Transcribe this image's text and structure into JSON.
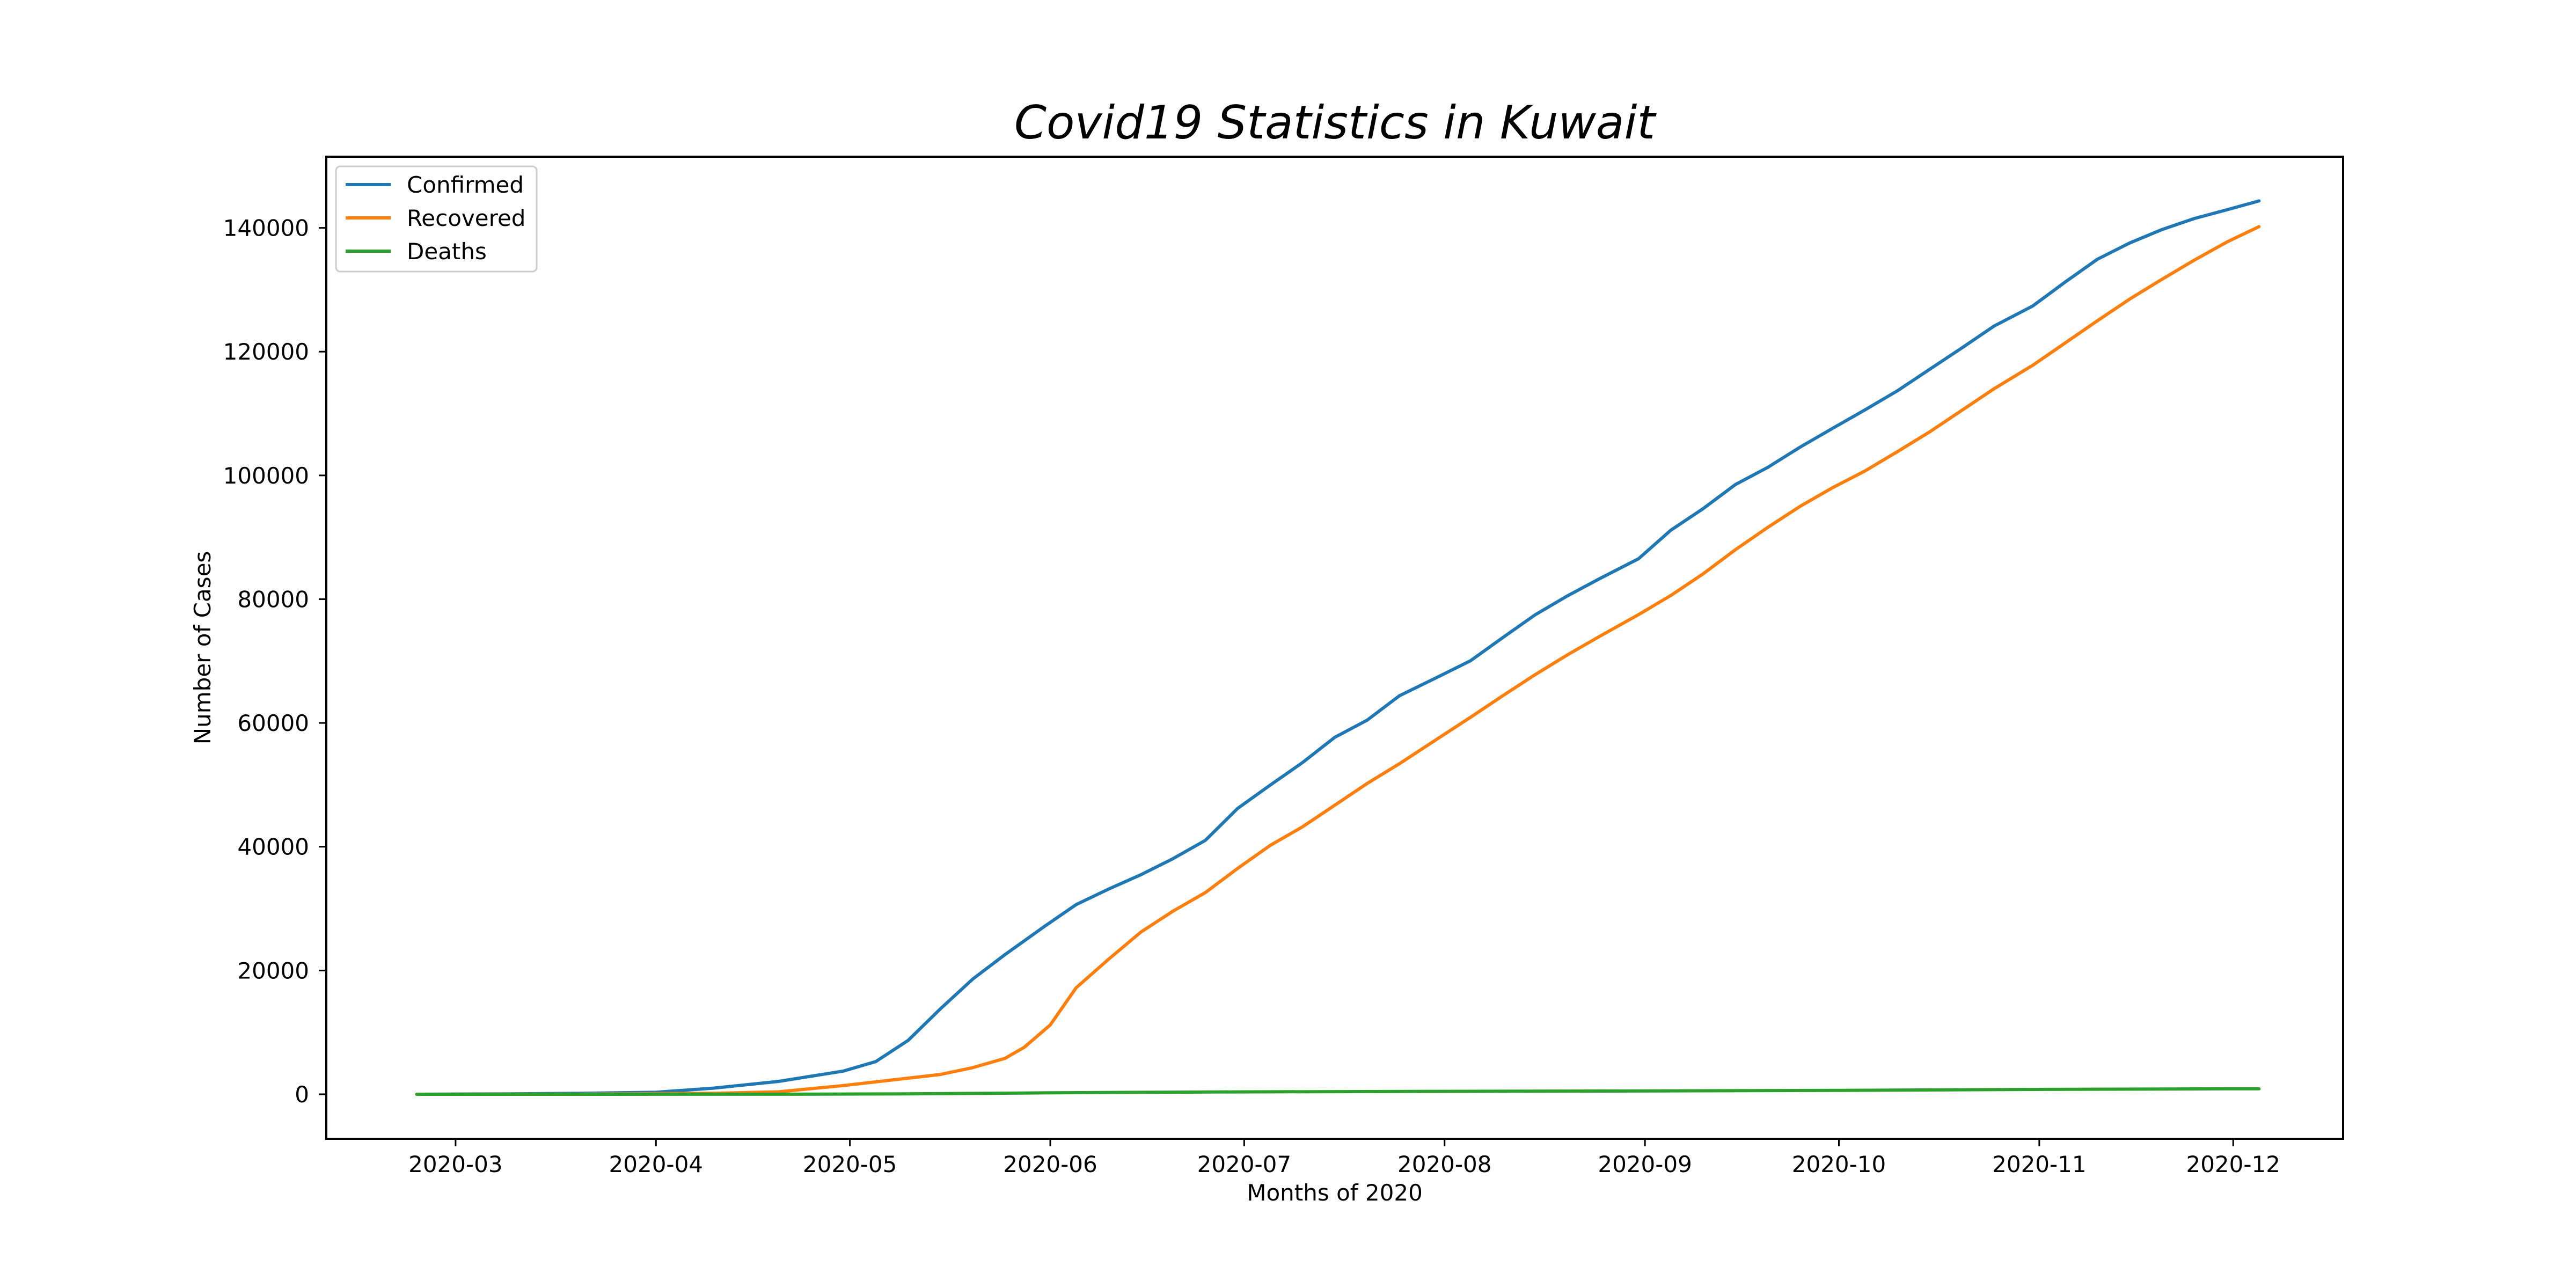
{
  "chart_data": {
    "type": "line",
    "title": "Covid19 Statistics in Kuwait",
    "xlabel": "Months of 2020",
    "ylabel": "Number of Cases",
    "x_tick_labels": [
      "2020-03",
      "2020-04",
      "2020-05",
      "2020-06",
      "2020-07",
      "2020-08",
      "2020-09",
      "2020-10",
      "2020-11",
      "2020-12"
    ],
    "y_tick_labels": [
      "0",
      "20000",
      "40000",
      "60000",
      "80000",
      "100000",
      "120000",
      "140000"
    ],
    "x_range": [
      "2020-02-10",
      "2020-12-18"
    ],
    "ylim": [
      -7200,
      151500
    ],
    "grid": false,
    "legend_position": "upper-left",
    "series": [
      {
        "name": "Confirmed",
        "color": "#1f77b4",
        "points": [
          [
            "2020-02-24",
            0
          ],
          [
            "2020-03-10",
            69
          ],
          [
            "2020-03-20",
            148
          ],
          [
            "2020-04-01",
            317
          ],
          [
            "2020-04-10",
            993
          ],
          [
            "2020-04-20",
            2080
          ],
          [
            "2020-04-30",
            3740
          ],
          [
            "2020-05-05",
            5278
          ],
          [
            "2020-05-10",
            8688
          ],
          [
            "2020-05-15",
            13802
          ],
          [
            "2020-05-20",
            18609
          ],
          [
            "2020-05-25",
            22575
          ],
          [
            "2020-05-31",
            27043
          ],
          [
            "2020-06-05",
            30644
          ],
          [
            "2020-06-10",
            33140
          ],
          [
            "2020-06-15",
            35466
          ],
          [
            "2020-06-20",
            38074
          ],
          [
            "2020-06-25",
            41033
          ],
          [
            "2020-06-30",
            46195
          ],
          [
            "2020-07-05",
            49941
          ],
          [
            "2020-07-10",
            53580
          ],
          [
            "2020-07-15",
            57668
          ],
          [
            "2020-07-20",
            60434
          ],
          [
            "2020-07-25",
            64379
          ],
          [
            "2020-07-31",
            67448
          ],
          [
            "2020-08-05",
            70045
          ],
          [
            "2020-08-10",
            73785
          ],
          [
            "2020-08-15",
            77470
          ],
          [
            "2020-08-20",
            80528
          ],
          [
            "2020-08-25",
            83320
          ],
          [
            "2020-08-31",
            86531
          ],
          [
            "2020-09-05",
            91144
          ],
          [
            "2020-09-10",
            94641
          ],
          [
            "2020-09-15",
            98528
          ],
          [
            "2020-09-20",
            101299
          ],
          [
            "2020-09-25",
            104568
          ],
          [
            "2020-09-30",
            107592
          ],
          [
            "2020-10-05",
            110568
          ],
          [
            "2020-10-10",
            113640
          ],
          [
            "2020-10-15",
            117111
          ],
          [
            "2020-10-20",
            120584
          ],
          [
            "2020-10-25",
            124134
          ],
          [
            "2020-10-31",
            127385
          ],
          [
            "2020-11-05",
            131243
          ],
          [
            "2020-11-10",
            134932
          ],
          [
            "2020-11-15",
            137563
          ],
          [
            "2020-11-20",
            139734
          ],
          [
            "2020-11-25",
            141522
          ],
          [
            "2020-11-30",
            142917
          ],
          [
            "2020-12-05",
            144358
          ]
        ]
      },
      {
        "name": "Recovered",
        "color": "#ff7f0e",
        "points": [
          [
            "2020-02-24",
            0
          ],
          [
            "2020-03-20",
            20
          ],
          [
            "2020-04-10",
            150
          ],
          [
            "2020-04-20",
            400
          ],
          [
            "2020-04-30",
            1400
          ],
          [
            "2020-05-05",
            2000
          ],
          [
            "2020-05-15",
            3200
          ],
          [
            "2020-05-20",
            4300
          ],
          [
            "2020-05-25",
            5800
          ],
          [
            "2020-05-28",
            7600
          ],
          [
            "2020-06-01",
            11200
          ],
          [
            "2020-06-05",
            17200
          ],
          [
            "2020-06-10",
            21800
          ],
          [
            "2020-06-15",
            26200
          ],
          [
            "2020-06-20",
            29600
          ],
          [
            "2020-06-25",
            32600
          ],
          [
            "2020-06-30",
            36500
          ],
          [
            "2020-07-05",
            40200
          ],
          [
            "2020-07-10",
            43200
          ],
          [
            "2020-07-15",
            46700
          ],
          [
            "2020-07-20",
            50200
          ],
          [
            "2020-07-25",
            53400
          ],
          [
            "2020-07-31",
            57500
          ],
          [
            "2020-08-05",
            60900
          ],
          [
            "2020-08-10",
            64400
          ],
          [
            "2020-08-15",
            67800
          ],
          [
            "2020-08-20",
            71000
          ],
          [
            "2020-08-25",
            74000
          ],
          [
            "2020-08-31",
            77500
          ],
          [
            "2020-09-05",
            80600
          ],
          [
            "2020-09-10",
            84100
          ],
          [
            "2020-09-15",
            88000
          ],
          [
            "2020-09-20",
            91600
          ],
          [
            "2020-09-25",
            95000
          ],
          [
            "2020-09-30",
            98000
          ],
          [
            "2020-10-05",
            100700
          ],
          [
            "2020-10-10",
            103800
          ],
          [
            "2020-10-15",
            107000
          ],
          [
            "2020-10-20",
            110500
          ],
          [
            "2020-10-25",
            114000
          ],
          [
            "2020-10-31",
            117800
          ],
          [
            "2020-11-05",
            121400
          ],
          [
            "2020-11-10",
            125000
          ],
          [
            "2020-11-15",
            128500
          ],
          [
            "2020-11-20",
            131700
          ],
          [
            "2020-11-25",
            134800
          ],
          [
            "2020-11-30",
            137700
          ],
          [
            "2020-12-05",
            140200
          ]
        ]
      },
      {
        "name": "Deaths",
        "color": "#2ca02c",
        "points": [
          [
            "2020-02-24",
            0
          ],
          [
            "2020-04-20",
            10
          ],
          [
            "2020-05-10",
            60
          ],
          [
            "2020-05-31",
            220
          ],
          [
            "2020-06-15",
            310
          ],
          [
            "2020-06-30",
            380
          ],
          [
            "2020-07-31",
            470
          ],
          [
            "2020-08-31",
            530
          ],
          [
            "2020-09-30",
            620
          ],
          [
            "2020-10-31",
            780
          ],
          [
            "2020-11-30",
            880
          ],
          [
            "2020-12-05",
            890
          ]
        ]
      }
    ]
  }
}
